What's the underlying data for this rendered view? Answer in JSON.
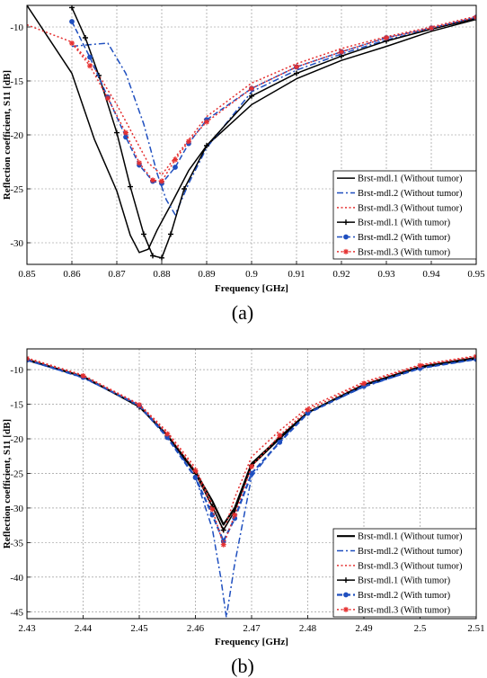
{
  "chart_data": [
    {
      "type": "line",
      "panel_label": "(a)",
      "xlabel": "Frequency [GHz]",
      "ylabel": "Reflection coefficient, S11 [dB]",
      "xlim": [
        0.85,
        0.95
      ],
      "ylim": [
        -32,
        -8
      ],
      "xticks": [
        0.85,
        0.86,
        0.87,
        0.88,
        0.89,
        0.9,
        0.91,
        0.92,
        0.93,
        0.94,
        0.95
      ],
      "xtick_labels": [
        "0.85",
        "0.86",
        "0.87",
        "0.88",
        "0.89",
        "0.9",
        "0.91",
        "0.92",
        "0.93",
        "0.94",
        "0.95"
      ],
      "yticks": [
        -10,
        -15,
        -20,
        -25,
        -30
      ],
      "ytick_labels": [
        "-10",
        "-15",
        "-20",
        "-25",
        "-30"
      ],
      "grid": true,
      "legend": "bottom-right",
      "series": [
        {
          "name": "Brst-mdl.1 (Without tumor)",
          "color": "#000000",
          "dash": "solid",
          "marker": "none",
          "x": [
            0.85,
            0.86,
            0.865,
            0.87,
            0.873,
            0.875,
            0.877,
            0.879,
            0.882,
            0.886,
            0.89,
            0.9,
            0.91,
            0.92,
            0.93,
            0.94,
            0.95
          ],
          "y": [
            -8,
            -14.3,
            -20.4,
            -25.2,
            -29.3,
            -30.9,
            -30.6,
            -28.8,
            -26.5,
            -23.3,
            -21.0,
            -17.2,
            -14.8,
            -13.1,
            -11.8,
            -10.4,
            -9.3
          ]
        },
        {
          "name": "Brst-mdl.2 (Without tumor)",
          "color": "#1f4fbf",
          "dash": "dashdot",
          "marker": "none",
          "x": [
            0.86,
            0.865,
            0.868,
            0.872,
            0.876,
            0.879,
            0.881,
            0.883,
            0.886,
            0.89,
            0.9,
            0.91,
            0.92,
            0.93,
            0.94,
            0.95
          ],
          "y": [
            -11.8,
            -11.6,
            -11.5,
            -14.3,
            -19.0,
            -23.6,
            -26.0,
            -27.4,
            -24.5,
            -21.2,
            -16.0,
            -14.0,
            -12.5,
            -11.2,
            -10.2,
            -9.2
          ]
        },
        {
          "name": "Brst-mdl.3 (Without tumor)",
          "color": "#e53030",
          "dash": "dotted",
          "marker": "none",
          "x": [
            0.85,
            0.86,
            0.865,
            0.87,
            0.874,
            0.877,
            0.88,
            0.885,
            0.89,
            0.9,
            0.91,
            0.92,
            0.93,
            0.94,
            0.95
          ],
          "y": [
            -9.8,
            -11.4,
            -13.8,
            -17.2,
            -20.3,
            -22.6,
            -23.7,
            -21.0,
            -18.3,
            -15.2,
            -13.4,
            -12.0,
            -10.9,
            -10.0,
            -9.0
          ]
        },
        {
          "name": "Brst-mdl.1 (With tumor)",
          "color": "#000000",
          "dash": "solid",
          "marker": "plus",
          "x": [
            0.86,
            0.863,
            0.866,
            0.87,
            0.873,
            0.876,
            0.878,
            0.88,
            0.882,
            0.885,
            0.89,
            0.9,
            0.91,
            0.92,
            0.93,
            0.94,
            0.95
          ],
          "y": [
            -8.2,
            -11.0,
            -14.5,
            -19.8,
            -24.8,
            -29.2,
            -31.2,
            -31.4,
            -29.2,
            -25.0,
            -21.0,
            -16.4,
            -14.3,
            -12.7,
            -11.3,
            -10.2,
            -9.2
          ]
        },
        {
          "name": "Brst-mdl.2 (With tumor)",
          "color": "#1f4fbf",
          "dash": "dashed",
          "marker": "circle",
          "x": [
            0.86,
            0.864,
            0.868,
            0.872,
            0.875,
            0.878,
            0.88,
            0.883,
            0.886,
            0.89,
            0.9,
            0.91,
            0.92,
            0.93,
            0.94,
            0.95
          ],
          "y": [
            -9.5,
            -12.8,
            -16.5,
            -20.2,
            -22.8,
            -24.3,
            -24.5,
            -23.0,
            -20.8,
            -18.6,
            -15.7,
            -13.7,
            -12.3,
            -11.0,
            -10.1,
            -9.1
          ]
        },
        {
          "name": "Brst-mdl.3 (With tumor)",
          "color": "#e53030",
          "dash": "dotted",
          "marker": "star",
          "x": [
            0.86,
            0.864,
            0.868,
            0.872,
            0.875,
            0.878,
            0.88,
            0.883,
            0.886,
            0.89,
            0.9,
            0.91,
            0.92,
            0.93,
            0.94,
            0.95
          ],
          "y": [
            -11.5,
            -13.6,
            -16.6,
            -19.8,
            -22.6,
            -24.2,
            -24.3,
            -22.3,
            -20.6,
            -18.8,
            -15.7,
            -13.7,
            -12.3,
            -11.0,
            -10.1,
            -9.1
          ]
        }
      ]
    },
    {
      "type": "line",
      "panel_label": "(b)",
      "xlabel": "Frequency [GHz]",
      "ylabel": "Reflection coefficient, S11 [dB]",
      "xlim": [
        2.43,
        2.51
      ],
      "ylim": [
        -46,
        -7
      ],
      "xticks": [
        2.43,
        2.44,
        2.45,
        2.46,
        2.47,
        2.48,
        2.49,
        2.5,
        2.51
      ],
      "xtick_labels": [
        "2.43",
        "2.44",
        "2.45",
        "2.46",
        "2.47",
        "2.48",
        "2.49",
        "2.5",
        "2.51"
      ],
      "yticks": [
        -10,
        -15,
        -20,
        -25,
        -30,
        -35,
        -40,
        -45
      ],
      "ytick_labels": [
        "-10",
        "-15",
        "-20",
        "-25",
        "-30",
        "-35",
        "-40",
        "-45"
      ],
      "grid": true,
      "legend": "bottom-right",
      "series": [
        {
          "name": "Brst-mdl.1 (Without tumor)",
          "color": "#000000",
          "dash": "solid",
          "marker": "none",
          "width": 2.2,
          "x": [
            2.43,
            2.44,
            2.45,
            2.455,
            2.46,
            2.463,
            2.465,
            2.467,
            2.47,
            2.475,
            2.48,
            2.49,
            2.5,
            2.51
          ],
          "y": [
            -8.6,
            -11.0,
            -15.3,
            -19.5,
            -24.8,
            -29.0,
            -32.4,
            -30.0,
            -23.6,
            -19.8,
            -16.2,
            -12.2,
            -9.6,
            -8.3
          ]
        },
        {
          "name": "Brst-mdl.2 (Without tumor)",
          "color": "#1f4fbf",
          "dash": "dashdot",
          "marker": "none",
          "x": [
            2.43,
            2.44,
            2.45,
            2.455,
            2.46,
            2.463,
            2.4645,
            2.4655,
            2.467,
            2.47,
            2.475,
            2.48,
            2.49,
            2.5,
            2.51
          ],
          "y": [
            -8.6,
            -11.2,
            -15.1,
            -19.6,
            -25.5,
            -33.0,
            -40.0,
            -45.8,
            -38.0,
            -25.5,
            -20.3,
            -16.2,
            -12.5,
            -9.8,
            -8.5
          ]
        },
        {
          "name": "Brst-mdl.3 (Without tumor)",
          "color": "#e53030",
          "dash": "dotted",
          "marker": "none",
          "x": [
            2.43,
            2.44,
            2.45,
            2.455,
            2.46,
            2.463,
            2.465,
            2.467,
            2.47,
            2.475,
            2.48,
            2.49,
            2.5,
            2.51
          ],
          "y": [
            -8.3,
            -10.8,
            -15.0,
            -19.0,
            -24.2,
            -29.5,
            -33.5,
            -28.5,
            -22.6,
            -18.8,
            -15.5,
            -11.8,
            -9.3,
            -8.0
          ]
        },
        {
          "name": "Brst-mdl.1 (With tumor)",
          "color": "#000000",
          "dash": "solid",
          "marker": "plus",
          "x": [
            2.43,
            2.44,
            2.45,
            2.455,
            2.46,
            2.463,
            2.465,
            2.467,
            2.47,
            2.475,
            2.48,
            2.49,
            2.5,
            2.51
          ],
          "y": [
            -8.5,
            -11.0,
            -15.4,
            -19.6,
            -25.0,
            -29.8,
            -33.2,
            -30.4,
            -23.9,
            -20.0,
            -16.2,
            -12.3,
            -9.7,
            -8.4
          ]
        },
        {
          "name": "Brst-mdl.2 (With tumor)",
          "color": "#1f4fbf",
          "dash": "dashed",
          "marker": "circle",
          "width": 2.2,
          "x": [
            2.43,
            2.44,
            2.45,
            2.455,
            2.46,
            2.463,
            2.465,
            2.467,
            2.47,
            2.475,
            2.48,
            2.49,
            2.5,
            2.51
          ],
          "y": [
            -8.6,
            -11.1,
            -15.2,
            -19.8,
            -25.6,
            -31.0,
            -34.8,
            -31.5,
            -25.0,
            -20.5,
            -16.3,
            -12.4,
            -9.8,
            -8.5
          ]
        },
        {
          "name": "Brst-mdl.3 (With tumor)",
          "color": "#e53030",
          "dash": "dotted",
          "marker": "star",
          "x": [
            2.43,
            2.44,
            2.45,
            2.455,
            2.46,
            2.463,
            2.465,
            2.467,
            2.47,
            2.475,
            2.48,
            2.49,
            2.5,
            2.51
          ],
          "y": [
            -8.4,
            -10.9,
            -15.1,
            -19.3,
            -24.6,
            -30.2,
            -35.3,
            -31.0,
            -24.0,
            -19.5,
            -15.8,
            -12.0,
            -9.4,
            -8.1
          ]
        }
      ]
    }
  ]
}
